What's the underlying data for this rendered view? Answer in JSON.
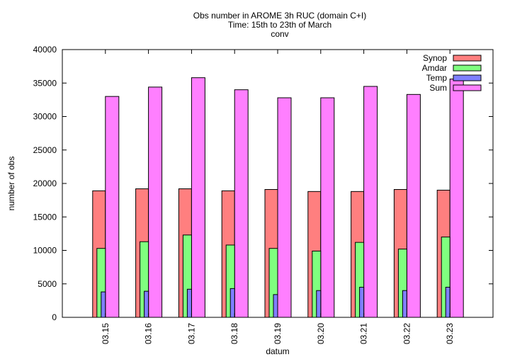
{
  "chart_data": {
    "type": "bar",
    "title_lines": [
      "Obs number in AROME 3h RUC (domain C+I)",
      "Time: 15th to 23th of March",
      "conv"
    ],
    "xlabel": "datum",
    "ylabel": "number of obs",
    "ylim": [
      0,
      40000
    ],
    "yticks": [
      0,
      5000,
      10000,
      15000,
      20000,
      25000,
      30000,
      35000,
      40000
    ],
    "legend_position": "top-right",
    "grid": false,
    "categories": [
      "03.15",
      "03.16",
      "03.17",
      "03.18",
      "03.19",
      "03.20",
      "03.21",
      "03.22",
      "03.23"
    ],
    "series": [
      {
        "name": "Synop",
        "color": "#ff7f7f",
        "values": [
          18900,
          19200,
          19200,
          18900,
          19100,
          18800,
          18800,
          19100,
          19000
        ]
      },
      {
        "name": "Amdar",
        "color": "#7fff7f",
        "values": [
          10300,
          11300,
          12300,
          10800,
          10300,
          9900,
          11200,
          10200,
          12000
        ]
      },
      {
        "name": "Temp",
        "color": "#7f7fff",
        "values": [
          3800,
          3900,
          4200,
          4300,
          3400,
          4000,
          4500,
          4000,
          4500
        ]
      },
      {
        "name": "Sum",
        "color": "#ff7fff",
        "values": [
          33000,
          34400,
          35800,
          34000,
          32800,
          32800,
          34500,
          33300,
          35600
        ]
      }
    ]
  }
}
